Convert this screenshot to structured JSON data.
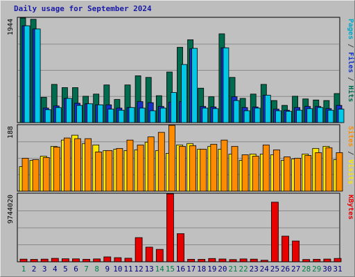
{
  "title": "Daily usage for September 2024",
  "colors": {
    "background": "#c0c0c0",
    "hits": "#006b4e",
    "files": "#1432c8",
    "pages": "#00c8e6",
    "visits": "#ffe600",
    "sites": "#ff8c00",
    "kbytes": "#e60000",
    "weekend_label": "#00804a",
    "weekday_label": "#000080"
  },
  "chart_data": [
    {
      "type": "bar",
      "panel": "top",
      "y_tick_label": "1944",
      "ylim": [
        0,
        1944
      ],
      "right_label_parts": [
        {
          "text": "Pages",
          "color": "#00a8c8"
        },
        {
          "text": " / ",
          "color": "#404040"
        },
        {
          "text": "Files",
          "color": "#1432c8"
        },
        {
          "text": " / ",
          "color": "#404040"
        },
        {
          "text": "Hits",
          "color": "#006b4e"
        }
      ],
      "categories": [
        "1",
        "2",
        "3",
        "4",
        "5",
        "6",
        "7",
        "8",
        "9",
        "10",
        "11",
        "12",
        "13",
        "14",
        "15",
        "16",
        "17",
        "18",
        "19",
        "20",
        "21",
        "22",
        "23",
        "24",
        "25",
        "26",
        "27",
        "28",
        "29",
        "30",
        "31"
      ],
      "series": [
        {
          "name": "Hits",
          "values": [
            1944,
            1920,
            470,
            710,
            650,
            650,
            490,
            530,
            700,
            430,
            700,
            870,
            840,
            500,
            940,
            1400,
            1540,
            640,
            480,
            1650,
            840,
            450,
            530,
            710,
            410,
            320,
            490,
            440,
            420,
            410,
            540
          ]
        },
        {
          "name": "Files",
          "values": [
            1800,
            1740,
            270,
            310,
            450,
            360,
            350,
            330,
            330,
            270,
            280,
            390,
            370,
            300,
            380,
            390,
            1370,
            300,
            290,
            1390,
            480,
            280,
            290,
            510,
            250,
            230,
            280,
            300,
            300,
            260,
            320
          ]
        },
        {
          "name": "Pages",
          "values": [
            1800,
            1740,
            240,
            280,
            450,
            320,
            350,
            330,
            250,
            230,
            280,
            270,
            220,
            270,
            560,
            1080,
            1380,
            270,
            260,
            1390,
            410,
            220,
            270,
            510,
            220,
            210,
            230,
            260,
            280,
            230,
            250
          ]
        }
      ]
    },
    {
      "type": "bar",
      "panel": "middle",
      "y_tick_label": "188",
      "ylim": [
        0,
        188
      ],
      "right_label_parts": [
        {
          "text": "Sites",
          "color": "#ff8c00"
        },
        {
          "text": " / ",
          "color": "#404040"
        },
        {
          "text": "Visits",
          "color": "#ffe600"
        }
      ],
      "categories": [
        "1",
        "2",
        "3",
        "4",
        "5",
        "6",
        "7",
        "8",
        "9",
        "10",
        "11",
        "12",
        "13",
        "14",
        "15",
        "16",
        "17",
        "18",
        "19",
        "20",
        "21",
        "22",
        "23",
        "24",
        "25",
        "26",
        "27",
        "28",
        "29",
        "30",
        "31"
      ],
      "series": [
        {
          "name": "Visits",
          "values": [
            70,
            88,
            100,
            128,
            146,
            160,
            136,
            132,
            116,
            120,
            116,
            118,
            140,
            116,
            108,
            132,
            136,
            120,
            128,
            120,
            106,
            88,
            106,
            106,
            104,
            88,
            92,
            106,
            122,
            128,
            90
          ]
        },
        {
          "name": "Sites",
          "values": [
            94,
            90,
            96,
            126,
            152,
            150,
            150,
            112,
            116,
            122,
            146,
            132,
            155,
            168,
            188,
            128,
            130,
            120,
            134,
            146,
            128,
            104,
            100,
            132,
            118,
            98,
            94,
            102,
            110,
            124,
            110
          ]
        }
      ]
    },
    {
      "type": "bar",
      "panel": "bottom",
      "y_tick_label": "9744020",
      "ylim": [
        0,
        9744020
      ],
      "right_label_parts": [
        {
          "text": "KBytes",
          "color": "#e60000"
        }
      ],
      "categories": [
        "1",
        "2",
        "3",
        "4",
        "5",
        "6",
        "7",
        "8",
        "9",
        "10",
        "11",
        "12",
        "13",
        "14",
        "15",
        "16",
        "17",
        "18",
        "19",
        "20",
        "21",
        "22",
        "23",
        "24",
        "25",
        "26",
        "27",
        "28",
        "29",
        "30",
        "31"
      ],
      "series": [
        {
          "name": "KBytes",
          "values": [
            380000,
            340000,
            380000,
            490000,
            430000,
            420000,
            360000,
            410000,
            700000,
            590000,
            510000,
            3470000,
            2100000,
            1780000,
            9744020,
            4040000,
            360000,
            350000,
            470000,
            400000,
            320000,
            410000,
            380000,
            220000,
            8560000,
            3680000,
            2980000,
            330000,
            360000,
            390000,
            480000
          ]
        }
      ]
    }
  ],
  "x_labels": [
    "1",
    "2",
    "3",
    "4",
    "5",
    "6",
    "7",
    "8",
    "9",
    "10",
    "11",
    "12",
    "13",
    "14",
    "15",
    "16",
    "17",
    "18",
    "19",
    "20",
    "21",
    "22",
    "23",
    "24",
    "25",
    "26",
    "27",
    "28",
    "29",
    "30",
    "31"
  ],
  "weekend_days": [
    "1",
    "7",
    "8",
    "14",
    "15",
    "21",
    "22",
    "28",
    "29"
  ]
}
